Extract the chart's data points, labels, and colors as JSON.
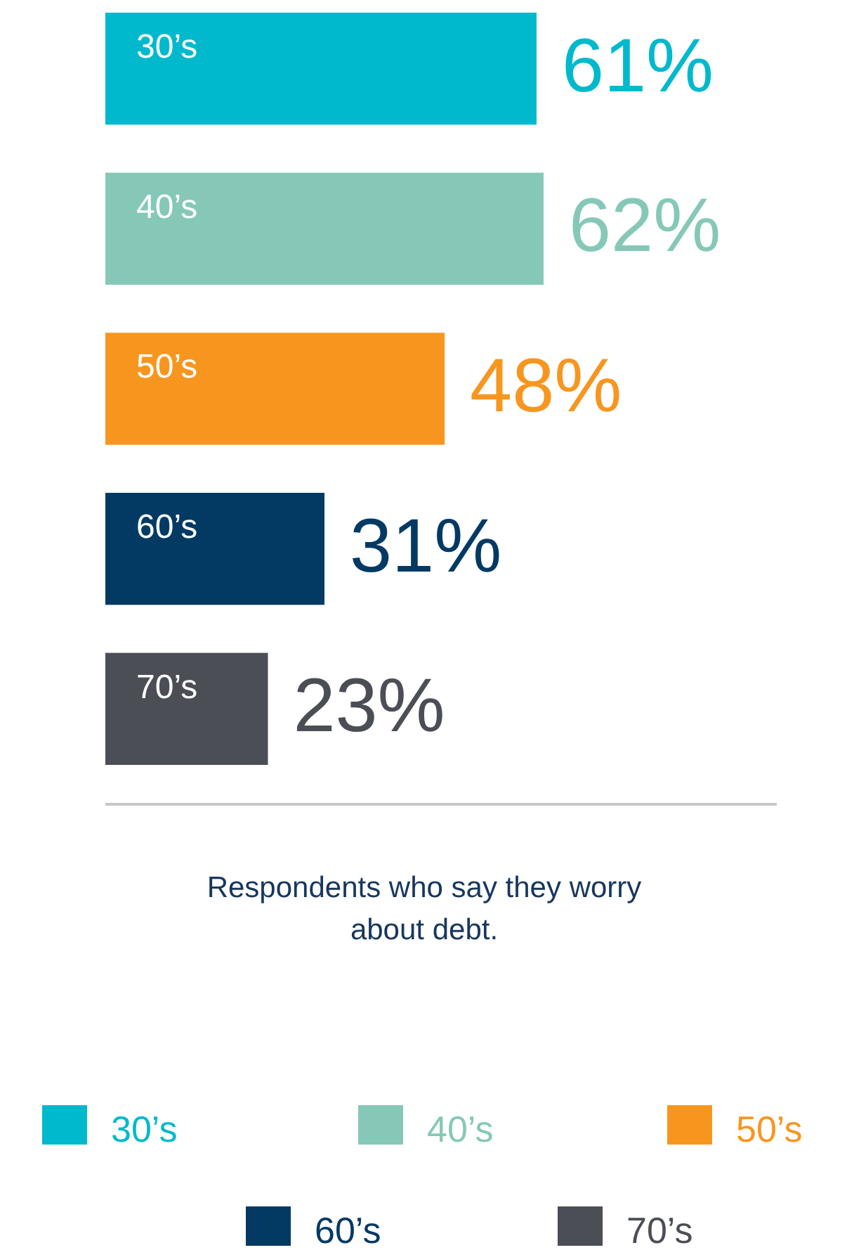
{
  "chart_data": {
    "type": "bar",
    "orientation": "horizontal",
    "categories": [
      "30’s",
      "40’s",
      "50’s",
      "60’s",
      "70’s"
    ],
    "series": [
      {
        "name": "30’s",
        "color": "#00b9cd",
        "values": [
          61,
          null,
          null,
          null,
          null
        ],
        "value_labels": [
          "61%",
          null,
          null,
          null,
          null
        ]
      },
      {
        "name": "40’s",
        "color": "#86c8b8",
        "values": [
          null,
          62,
          null,
          null,
          null
        ],
        "value_labels": [
          null,
          "62%",
          null,
          null,
          null
        ]
      },
      {
        "name": "50’s",
        "color": "#f7961f",
        "values": [
          null,
          null,
          48,
          null,
          null
        ],
        "value_labels": [
          null,
          null,
          "48%",
          null,
          null
        ]
      },
      {
        "name": "60’s",
        "color": "#033a64",
        "values": [
          null,
          null,
          null,
          31,
          null
        ],
        "value_labels": [
          null,
          null,
          null,
          "31%",
          null
        ]
      },
      {
        "name": "70’s",
        "color": "#4b4e55",
        "values": [
          null,
          null,
          null,
          null,
          23
        ],
        "value_labels": [
          null,
          null,
          null,
          null,
          "23%"
        ]
      }
    ],
    "legend": "bottom",
    "annotations": [
      "Respondents who say they worry about debt."
    ]
  }
}
